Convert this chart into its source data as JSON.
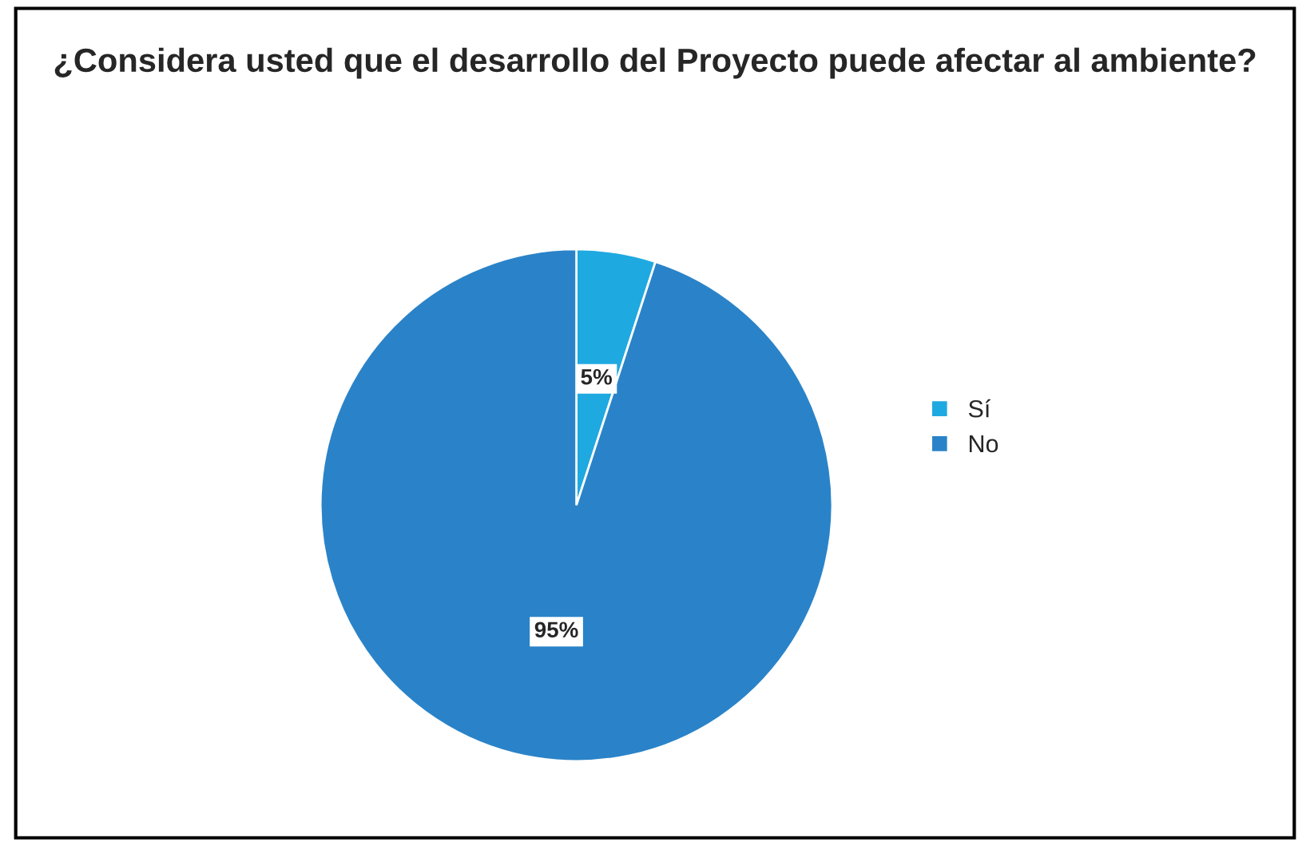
{
  "chart_data": {
    "type": "pie",
    "title": "¿Considera usted que el desarrollo del Proyecto puede afectar al ambiente?",
    "categories": [
      "Sí",
      "No"
    ],
    "values": [
      5,
      95
    ],
    "colors": [
      "#1fa9e1",
      "#2a83c8"
    ],
    "value_labels": [
      "5%",
      "95%"
    ],
    "legend": "right"
  }
}
